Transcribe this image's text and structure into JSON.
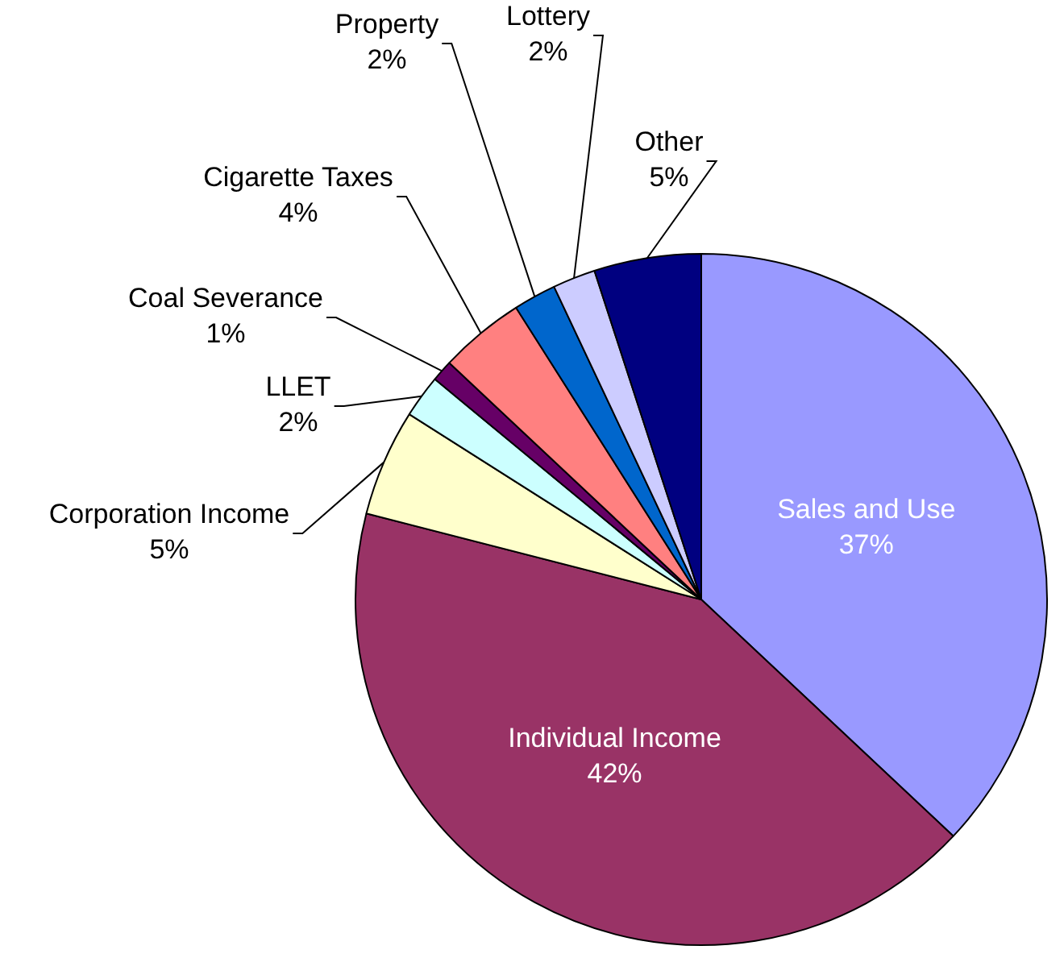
{
  "chart_data": {
    "type": "pie",
    "categories": [
      "Sales and Use",
      "Individual Income",
      "Corporation Income",
      "LLET",
      "Coal Severance",
      "Cigarette Taxes",
      "Property",
      "Lottery",
      "Other"
    ],
    "values": [
      37,
      42,
      5,
      2,
      1,
      4,
      2,
      2,
      5
    ],
    "value_labels": [
      "37%",
      "42%",
      "5%",
      "2%",
      "1%",
      "4%",
      "2%",
      "2%",
      "5%"
    ],
    "colors": [
      "#9999ff",
      "#993366",
      "#ffffcc",
      "#ccffff",
      "#660066",
      "#ff8080",
      "#0066cc",
      "#ccccff",
      "#000080"
    ],
    "legend": false
  }
}
